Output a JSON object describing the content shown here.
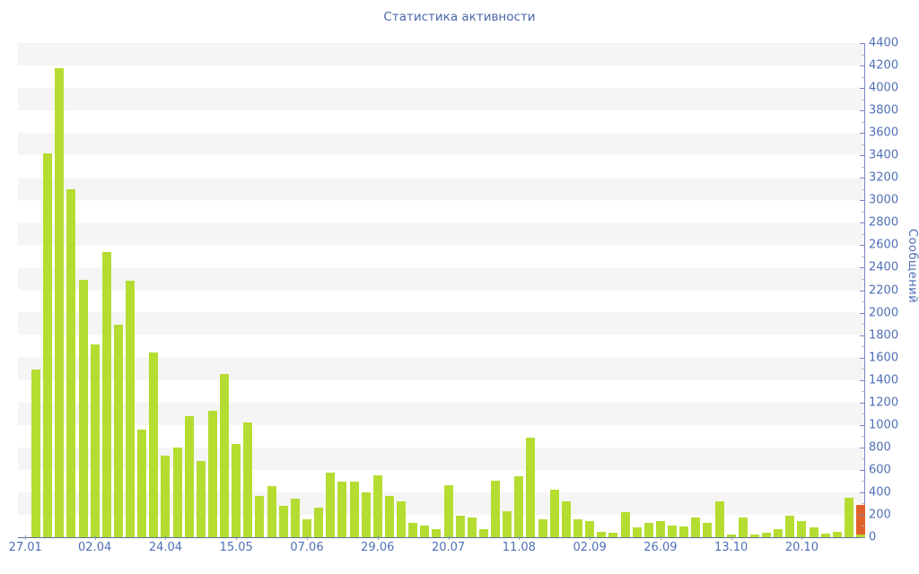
{
  "title": "Статистика активности",
  "colors": {
    "title_text": "#4a67a8",
    "tick_label_text": "#4f6fb5",
    "bar_green": "#b5dd31",
    "bar_orange": "#e0622a",
    "stripe_gray": "#f5f5f6",
    "y_axis_line": "#7e86c2",
    "x_axis_line": "#5f7296",
    "major_tick": "#7e86c2",
    "minor_tick": "#bbbbbb",
    "x_tick_mark": "#8e99ad"
  },
  "chart_data": {
    "type": "bar",
    "title": "Статистика активности",
    "xlabel": "",
    "ylabel": "Сообщений",
    "ylim": [
      0,
      4400
    ],
    "y_major_step": 200,
    "y_minor_step": 100,
    "grid": "horizontal-stripes",
    "legend_position": "none",
    "y_tick_labels": [
      "0",
      "200",
      "400",
      "600",
      "800",
      "1000",
      "1200",
      "1400",
      "1600",
      "1800",
      "2000",
      "2200",
      "2400",
      "2600",
      "2800",
      "3000",
      "3200",
      "3400",
      "3600",
      "3800",
      "4000",
      "4200",
      "4400"
    ],
    "x_ticks": [
      {
        "label": "27.01",
        "bar_index": -0.9
      },
      {
        "label": "02.04",
        "bar_index": 5
      },
      {
        "label": "24.04",
        "bar_index": 11
      },
      {
        "label": "15.05",
        "bar_index": 17
      },
      {
        "label": "07.06",
        "bar_index": 23
      },
      {
        "label": "29.06",
        "bar_index": 29
      },
      {
        "label": "20.07",
        "bar_index": 35
      },
      {
        "label": "11.08",
        "bar_index": 41
      },
      {
        "label": "02.09",
        "bar_index": 47
      },
      {
        "label": "26.09",
        "bar_index": 53
      },
      {
        "label": "13.10",
        "bar_index": 59
      },
      {
        "label": "20.10",
        "bar_index": 65
      }
    ],
    "values": [
      1490,
      3420,
      4180,
      3100,
      2290,
      1720,
      2540,
      1890,
      2280,
      960,
      1645,
      725,
      800,
      1080,
      680,
      1130,
      1450,
      830,
      1020,
      370,
      455,
      280,
      345,
      160,
      260,
      575,
      495,
      495,
      400,
      550,
      370,
      320,
      130,
      100,
      75,
      460,
      190,
      175,
      75,
      500,
      230,
      545,
      885,
      160,
      420,
      320,
      160,
      140,
      50,
      40,
      225,
      85,
      130,
      140,
      100,
      95,
      175,
      125,
      320,
      25,
      175,
      25,
      40,
      70,
      195,
      140,
      85,
      30,
      50,
      355,
      285
    ],
    "current_bar": {
      "note": "last bar drawn in orange with small green base",
      "value": 285,
      "green_base": 25
    }
  }
}
